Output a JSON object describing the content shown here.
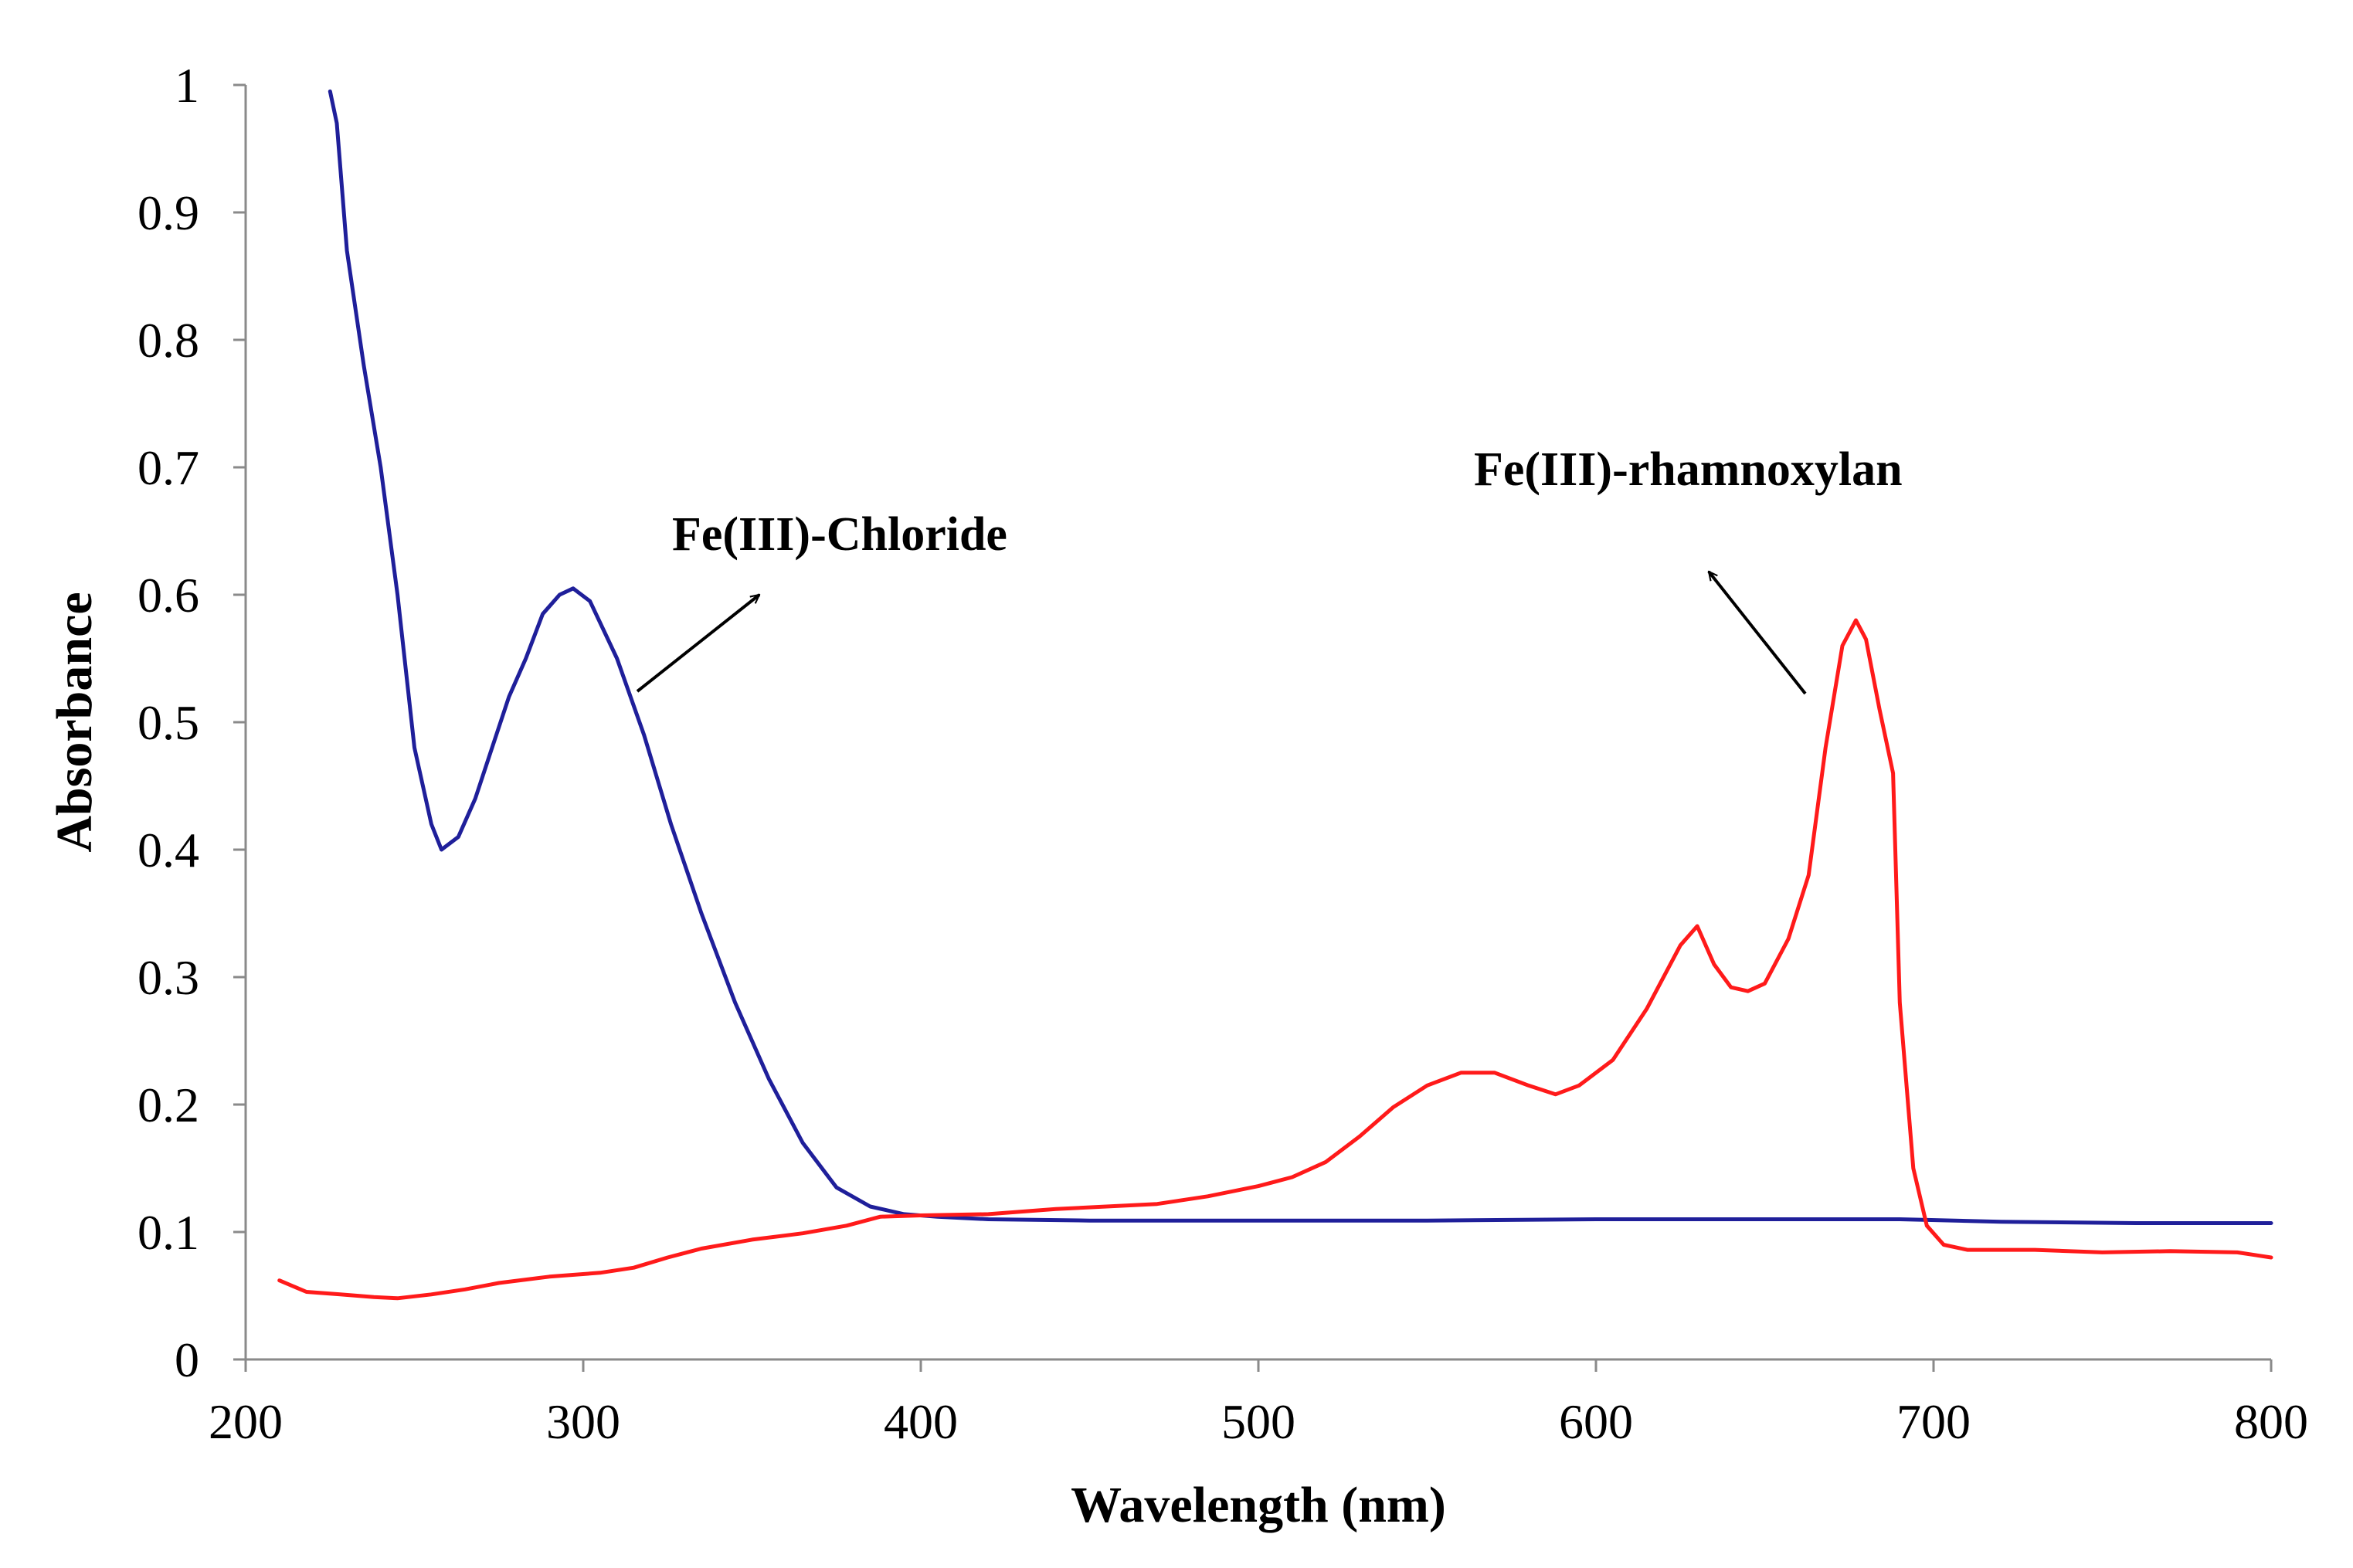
{
  "chart_data": {
    "type": "line",
    "title": "",
    "xlabel": "Wavelength (nm)",
    "ylabel": "Absorbance",
    "xlim": [
      200,
      800
    ],
    "ylim": [
      0,
      1
    ],
    "xticks": [
      200,
      300,
      400,
      500,
      600,
      700,
      800
    ],
    "yticks": [
      0,
      0.1,
      0.2,
      0.3,
      0.4,
      0.5,
      0.6,
      0.7,
      0.8,
      0.9,
      1
    ],
    "ytick_labels": [
      "0",
      "0.1",
      "0.2",
      "0.3",
      "0.4",
      "0.5",
      "0.6",
      "0.7",
      "0.8",
      "0.9",
      "1"
    ],
    "grid": false,
    "series": [
      {
        "name": "Fe(III)-Chloride",
        "color": "#1f1f9a",
        "points": [
          [
            225,
            0.995
          ],
          [
            227,
            0.97
          ],
          [
            230,
            0.87
          ],
          [
            235,
            0.78
          ],
          [
            240,
            0.7
          ],
          [
            245,
            0.6
          ],
          [
            250,
            0.48
          ],
          [
            255,
            0.42
          ],
          [
            258,
            0.4
          ],
          [
            263,
            0.41
          ],
          [
            268,
            0.44
          ],
          [
            273,
            0.48
          ],
          [
            278,
            0.52
          ],
          [
            283,
            0.55
          ],
          [
            288,
            0.585
          ],
          [
            293,
            0.6
          ],
          [
            297,
            0.605
          ],
          [
            302,
            0.595
          ],
          [
            310,
            0.55
          ],
          [
            318,
            0.49
          ],
          [
            326,
            0.42
          ],
          [
            335,
            0.35
          ],
          [
            345,
            0.28
          ],
          [
            355,
            0.22
          ],
          [
            365,
            0.17
          ],
          [
            375,
            0.135
          ],
          [
            385,
            0.12
          ],
          [
            395,
            0.114
          ],
          [
            405,
            0.112
          ],
          [
            420,
            0.11
          ],
          [
            450,
            0.109
          ],
          [
            500,
            0.109
          ],
          [
            550,
            0.109
          ],
          [
            600,
            0.11
          ],
          [
            650,
            0.11
          ],
          [
            690,
            0.11
          ],
          [
            720,
            0.108
          ],
          [
            760,
            0.107
          ],
          [
            800,
            0.107
          ]
        ]
      },
      {
        "name": "Fe(III)-rhamnoxylan",
        "color": "#ff1a1a",
        "points": [
          [
            210,
            0.062
          ],
          [
            218,
            0.053
          ],
          [
            228,
            0.051
          ],
          [
            238,
            0.049
          ],
          [
            245,
            0.048
          ],
          [
            255,
            0.051
          ],
          [
            265,
            0.055
          ],
          [
            275,
            0.06
          ],
          [
            290,
            0.065
          ],
          [
            305,
            0.068
          ],
          [
            315,
            0.072
          ],
          [
            325,
            0.08
          ],
          [
            335,
            0.087
          ],
          [
            350,
            0.094
          ],
          [
            365,
            0.099
          ],
          [
            378,
            0.105
          ],
          [
            388,
            0.112
          ],
          [
            400,
            0.113
          ],
          [
            420,
            0.114
          ],
          [
            440,
            0.118
          ],
          [
            455,
            0.12
          ],
          [
            470,
            0.122
          ],
          [
            485,
            0.128
          ],
          [
            500,
            0.136
          ],
          [
            510,
            0.143
          ],
          [
            520,
            0.155
          ],
          [
            530,
            0.175
          ],
          [
            540,
            0.198
          ],
          [
            550,
            0.215
          ],
          [
            560,
            0.225
          ],
          [
            570,
            0.225
          ],
          [
            580,
            0.215
          ],
          [
            588,
            0.208
          ],
          [
            595,
            0.215
          ],
          [
            605,
            0.235
          ],
          [
            615,
            0.275
          ],
          [
            625,
            0.325
          ],
          [
            630,
            0.34
          ],
          [
            635,
            0.31
          ],
          [
            640,
            0.292
          ],
          [
            645,
            0.289
          ],
          [
            650,
            0.295
          ],
          [
            657,
            0.33
          ],
          [
            663,
            0.38
          ],
          [
            668,
            0.48
          ],
          [
            673,
            0.56
          ],
          [
            677,
            0.58
          ],
          [
            680,
            0.565
          ],
          [
            684,
            0.51
          ],
          [
            688,
            0.46
          ],
          [
            690,
            0.28
          ],
          [
            694,
            0.15
          ],
          [
            698,
            0.105
          ],
          [
            703,
            0.09
          ],
          [
            710,
            0.086
          ],
          [
            730,
            0.086
          ],
          [
            750,
            0.084
          ],
          [
            770,
            0.085
          ],
          [
            790,
            0.084
          ],
          [
            800,
            0.08
          ]
        ]
      }
    ],
    "annotations": [
      {
        "text": "Fe(III)-Chloride",
        "series": "Fe(III)-Chloride"
      },
      {
        "text": "Fe(III)-rhamnoxylan",
        "series": "Fe(III)-rhamnoxylan"
      }
    ]
  }
}
